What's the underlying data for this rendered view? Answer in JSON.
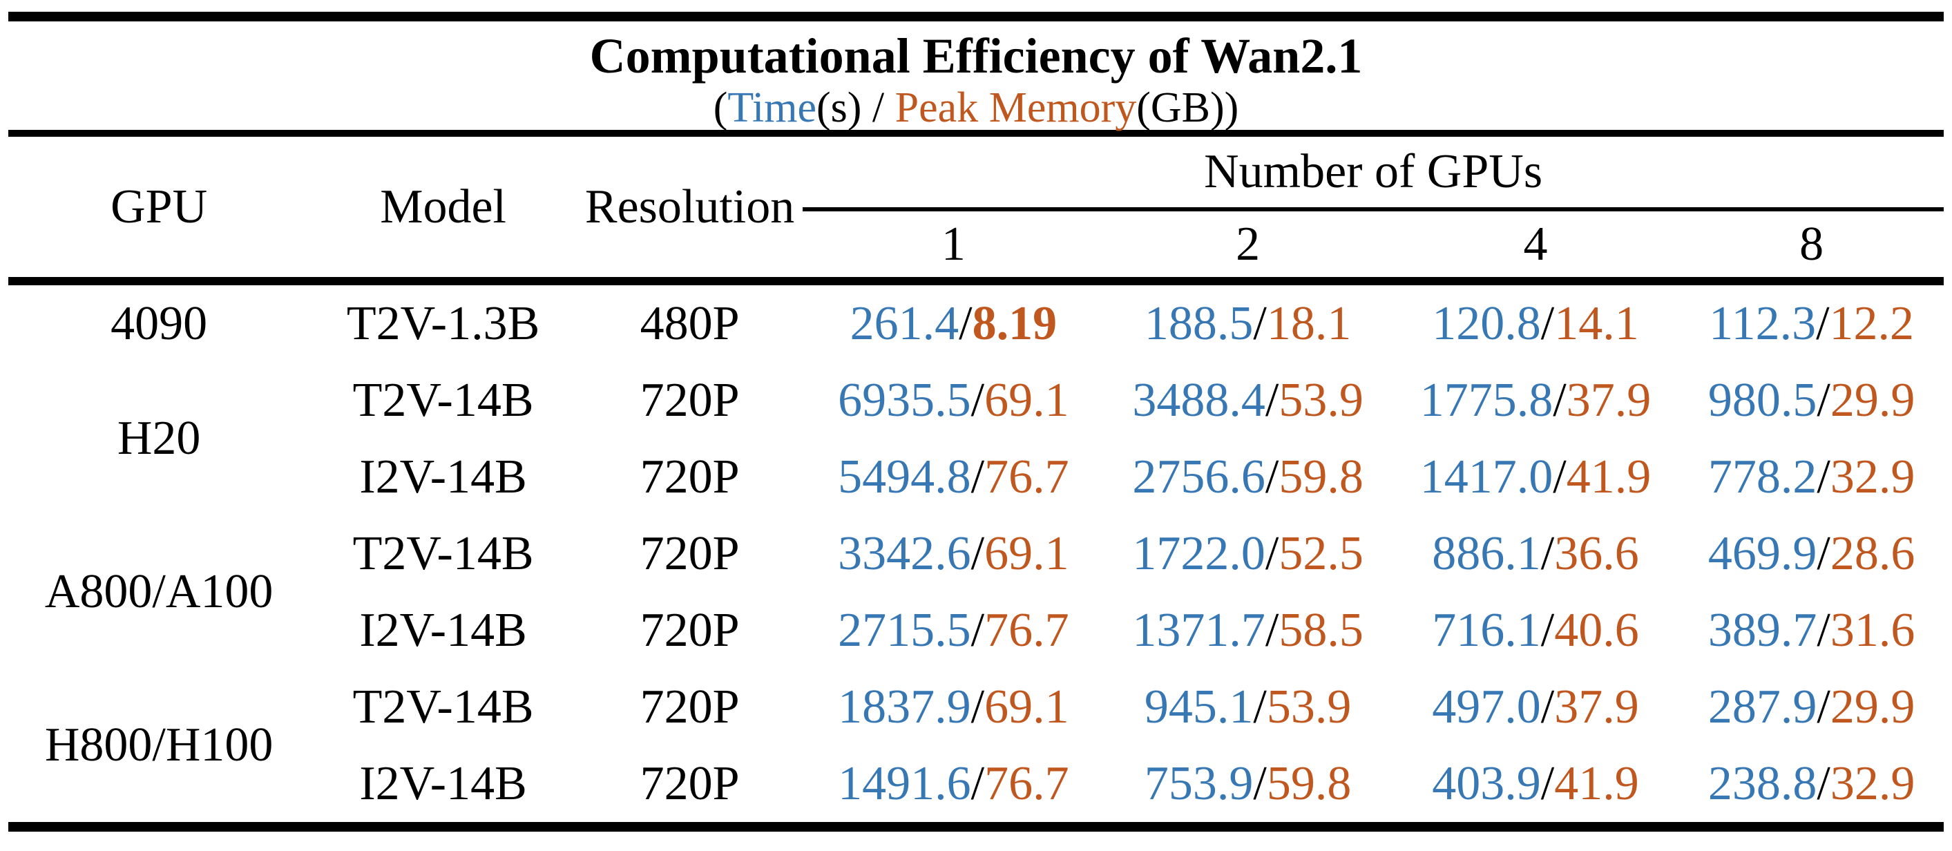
{
  "title": "Computational Efficiency of Wan2.1",
  "subtitle": {
    "open_paren": "(",
    "time_label": "Time",
    "time_unit_and_sep": "(s) / ",
    "memory_label": "Peak Memory",
    "memory_unit_close": "(GB))"
  },
  "colors": {
    "time": "#3778B4",
    "memory": "#C0571F",
    "rule": "#000000"
  },
  "columns": [
    "GPU",
    "Model",
    "Resolution"
  ],
  "gpu_group_header": "Number of GPUs",
  "gpu_counts": [
    "1",
    "2",
    "4",
    "8"
  ],
  "separator": "/",
  "rows": [
    {
      "gpu": "4090",
      "model": "T2V-1.3B",
      "resolution": "480P",
      "cells": [
        {
          "time": "261.4",
          "mem": "8.19"
        },
        {
          "time": "188.5",
          "mem": "18.1"
        },
        {
          "time": "120.8",
          "mem": "14.1"
        },
        {
          "time": "112.3",
          "mem": "12.2"
        }
      ]
    },
    {
      "gpu": "H20",
      "model": "T2V-14B",
      "resolution": "720P",
      "cells": [
        {
          "time": "6935.5",
          "mem": "69.1"
        },
        {
          "time": "3488.4",
          "mem": "53.9"
        },
        {
          "time": "1775.8",
          "mem": "37.9"
        },
        {
          "time": "980.5",
          "mem": "29.9"
        }
      ]
    },
    {
      "model": "I2V-14B",
      "resolution": "720P",
      "cells": [
        {
          "time": "5494.8",
          "mem": "76.7"
        },
        {
          "time": "2756.6",
          "mem": "59.8"
        },
        {
          "time": "1417.0",
          "mem": "41.9"
        },
        {
          "time": "778.2",
          "mem": "32.9"
        }
      ]
    },
    {
      "gpu": "A800/A100",
      "model": "T2V-14B",
      "resolution": "720P",
      "cells": [
        {
          "time": "3342.6",
          "mem": "69.1"
        },
        {
          "time": "1722.0",
          "mem": "52.5"
        },
        {
          "time": "886.1",
          "mem": "36.6"
        },
        {
          "time": "469.9",
          "mem": "28.6"
        }
      ]
    },
    {
      "model": "I2V-14B",
      "resolution": "720P",
      "cells": [
        {
          "time": "2715.5",
          "mem": "76.7"
        },
        {
          "time": "1371.7",
          "mem": "58.5"
        },
        {
          "time": "716.1",
          "mem": "40.6"
        },
        {
          "time": "389.7",
          "mem": "31.6"
        }
      ]
    },
    {
      "gpu": "H800/H100",
      "model": "T2V-14B",
      "resolution": "720P",
      "cells": [
        {
          "time": "1837.9",
          "mem": "69.1"
        },
        {
          "time": "945.1",
          "mem": "53.9"
        },
        {
          "time": "497.0",
          "mem": "37.9"
        },
        {
          "time": "287.9",
          "mem": "29.9"
        }
      ]
    },
    {
      "model": "I2V-14B",
      "resolution": "720P",
      "cells": [
        {
          "time": "1491.6",
          "mem": "76.7"
        },
        {
          "time": "753.9",
          "mem": "59.8"
        },
        {
          "time": "403.9",
          "mem": "41.9"
        },
        {
          "time": "238.8",
          "mem": "32.9"
        }
      ]
    }
  ]
}
